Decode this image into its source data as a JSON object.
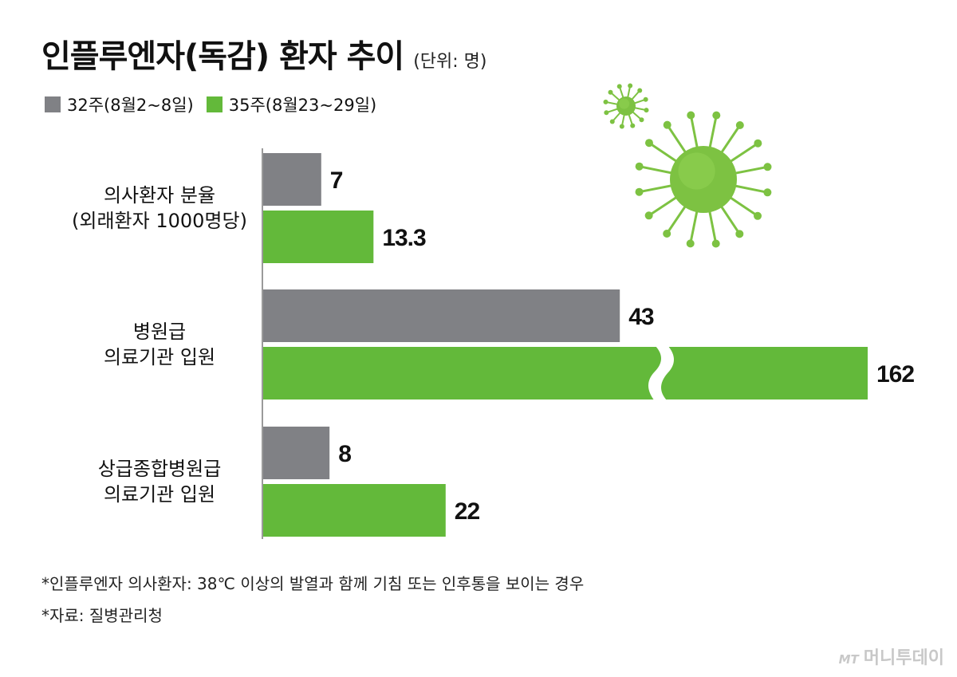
{
  "title": "인플루엔자(독감) 환자 추이",
  "unit": "(단위: 명)",
  "colors": {
    "series1": "#808185",
    "series2": "#63b93a",
    "axis": "#9a9a9a",
    "virus": "#7dc242"
  },
  "chart_data": {
    "type": "bar",
    "orientation": "horizontal",
    "categories": [
      [
        "의사환자 분율",
        "(외래환자 1000명당)"
      ],
      [
        "병원급",
        "의료기관 입원"
      ],
      [
        "상급종합병원급",
        "의료기관 입원"
      ]
    ],
    "series": [
      {
        "name": "32주(8월2~8일)",
        "values": [
          7,
          43,
          8
        ],
        "labels": [
          "7",
          "43",
          "8"
        ]
      },
      {
        "name": "35주(8월23~29일)",
        "values": [
          13.3,
          162,
          22
        ],
        "labels": [
          "13.3",
          "162",
          "22"
        ]
      }
    ],
    "axis_break": {
      "category_index": 1,
      "series_index": 1
    },
    "legend_position": "top-left"
  },
  "footnotes": [
    "*인플루엔자 의사환자: 38℃ 이상의 발열과 함께 기침 또는 인후통을 보이는 경우",
    "*자료: 질병관리청"
  ],
  "watermark": {
    "mark": "MT",
    "name": "머니투데이"
  }
}
